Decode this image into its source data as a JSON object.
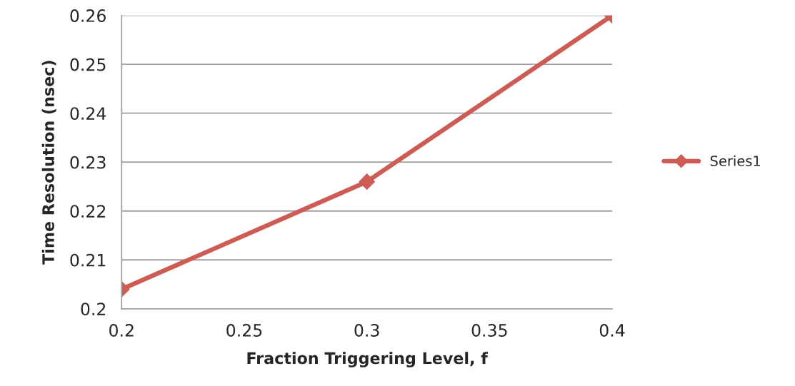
{
  "chart_data": {
    "type": "line",
    "xlabel": "Fraction Triggering Level, f",
    "ylabel": "Time Resolution (nsec)",
    "x": [
      0.2,
      0.3,
      0.4
    ],
    "series": [
      {
        "name": "Series1",
        "color": "#cd5c55",
        "values": [
          0.204,
          0.226,
          0.26
        ]
      }
    ],
    "xlim": [
      0.2,
      0.4
    ],
    "xticks": [
      0.2,
      0.25,
      0.3,
      0.35,
      0.4
    ],
    "ylim": [
      0.2,
      0.26
    ],
    "yticks": [
      0.2,
      0.21,
      0.22,
      0.23,
      0.24,
      0.25,
      0.26
    ],
    "grid": "y",
    "legend": "right",
    "marker": "diamond",
    "line_style": "solid"
  }
}
